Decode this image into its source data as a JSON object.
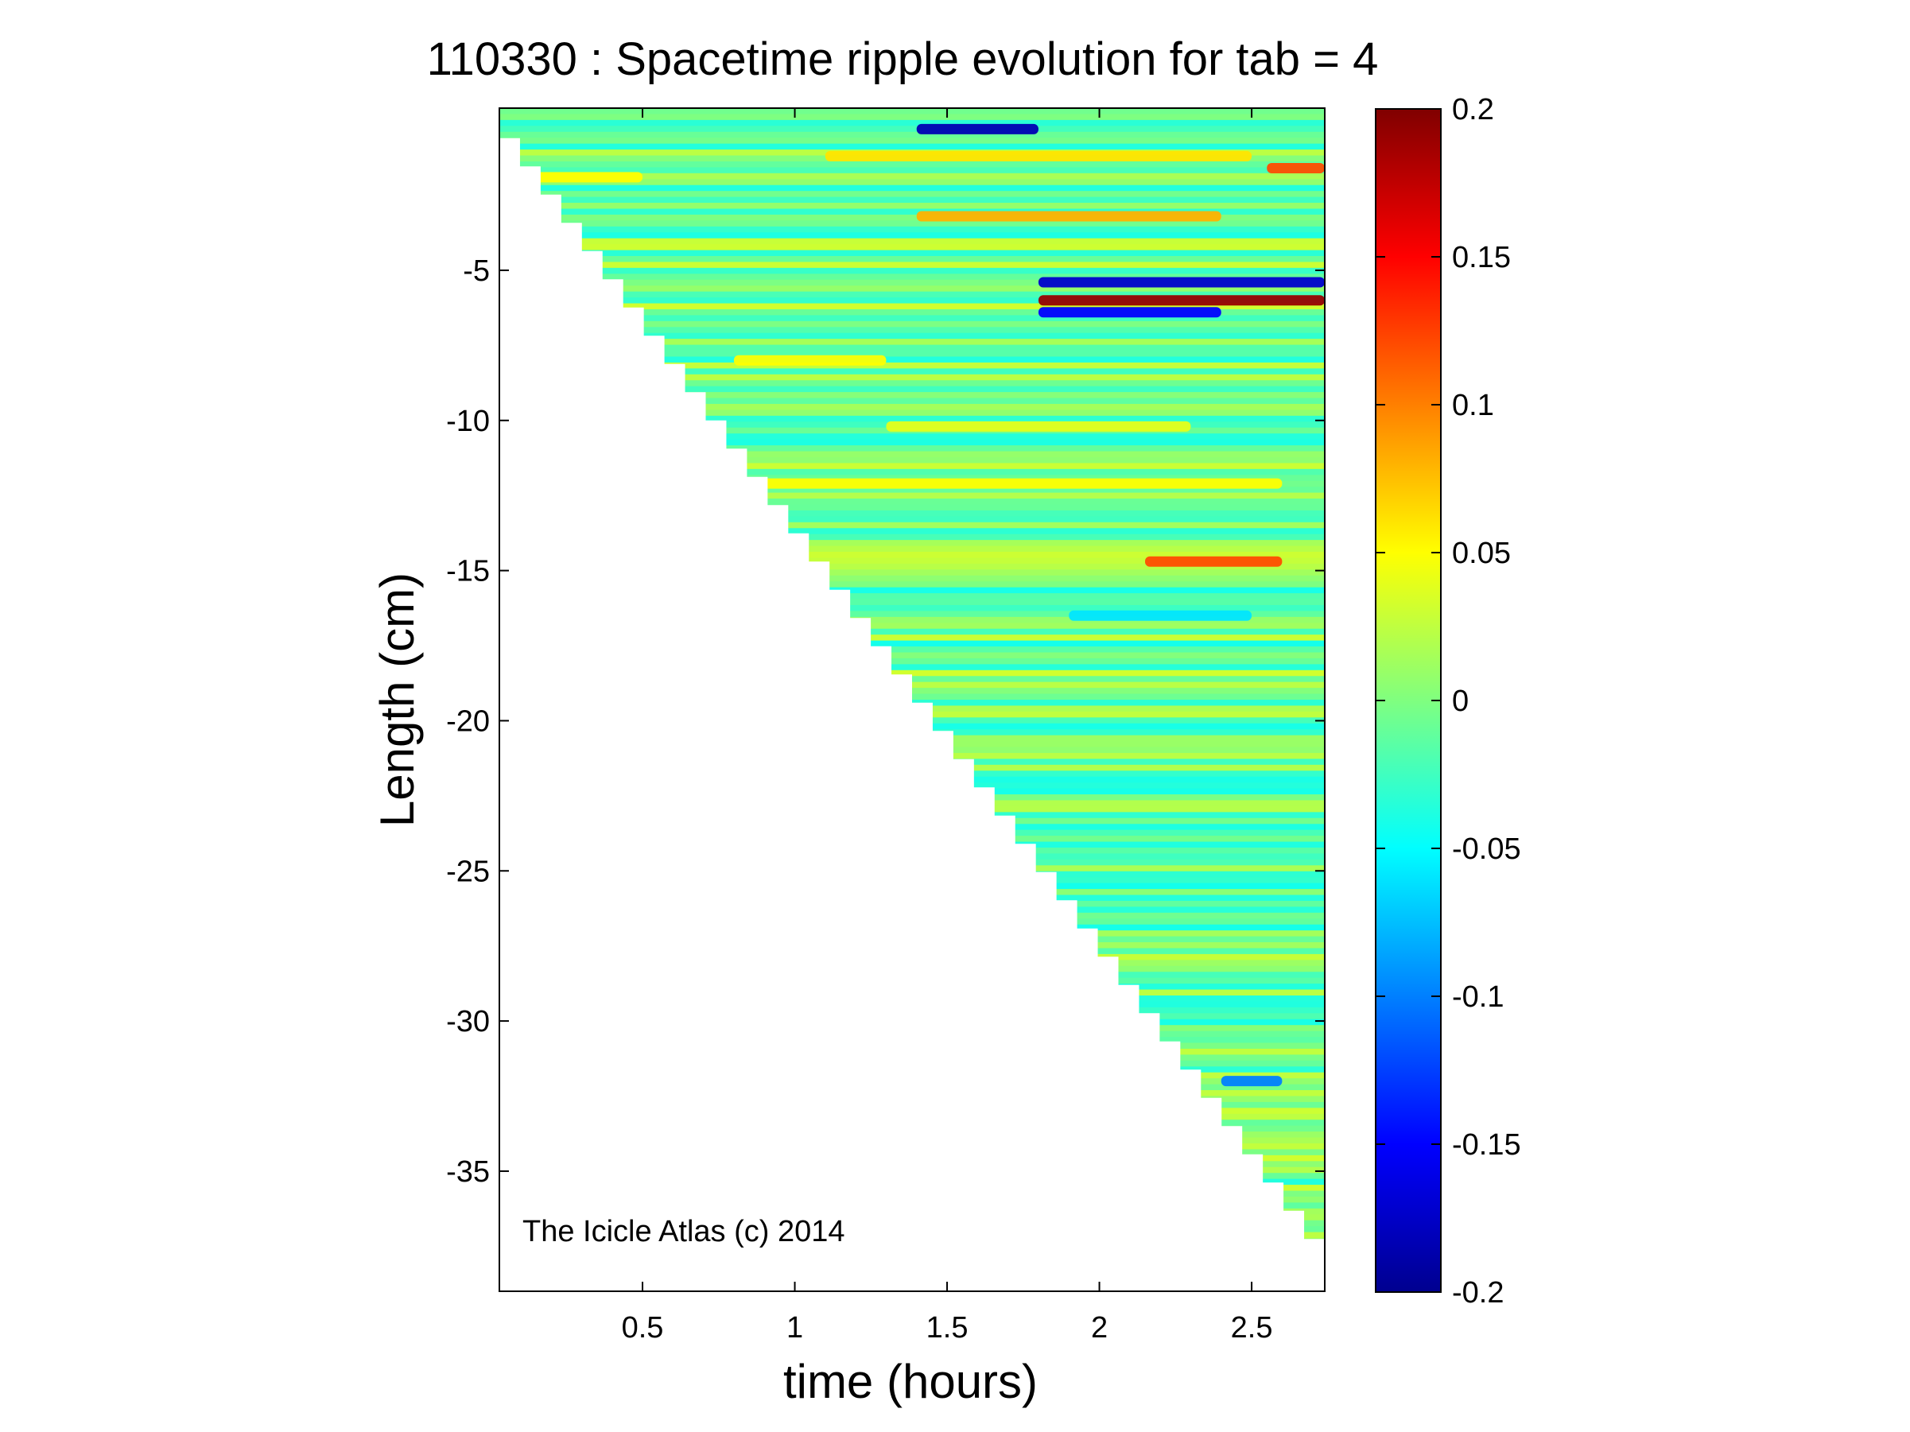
{
  "chart_data": {
    "type": "heatmap",
    "title": "110330 : Spacetime ripple evolution for tab = 4",
    "xlabel": "time (hours)",
    "ylabel": "Length (cm)",
    "xlim": [
      0.03,
      2.74
    ],
    "ylim": [
      -39,
      0.4
    ],
    "xticks": [
      0.5,
      1,
      1.5,
      2,
      2.5
    ],
    "xtick_labels": [
      "0.5",
      "1",
      "1.5",
      "2",
      "2.5"
    ],
    "yticks": [
      -5,
      -10,
      -15,
      -20,
      -25,
      -30,
      -35
    ],
    "ytick_labels": [
      "-5",
      "-10",
      "-15",
      "-20",
      "-25",
      "-30",
      "-35"
    ],
    "colorbar": {
      "colormap": "jet",
      "range": [
        -0.2,
        0.2
      ],
      "ticks": [
        0.2,
        0.15,
        0.1,
        0.05,
        0,
        -0.05,
        -0.1,
        -0.15,
        -0.2
      ],
      "tick_labels": [
        "0.2",
        "0.15",
        "0.1",
        "0.05",
        "0",
        "-0.05",
        "-0.1",
        "-0.15",
        "-0.2"
      ]
    },
    "annotation": "The Icicle Atlas (c) 2014",
    "grid": false,
    "legend": "none",
    "region_boundary": {
      "description": "Data exists only where the icicle has grown: the tip length versus time",
      "tip": [
        [
          0.03,
          -0.6
        ],
        [
          2.74,
          -38.2
        ]
      ]
    },
    "background_value": -0.005,
    "features": [
      {
        "y": -0.3,
        "t_start": 1.4,
        "t_end": 1.8,
        "value": -0.18
      },
      {
        "y": -1.2,
        "t_start": 1.1,
        "t_end": 2.5,
        "value": 0.06
      },
      {
        "y": -1.6,
        "t_start": 2.55,
        "t_end": 2.74,
        "value": 0.12
      },
      {
        "y": -1.9,
        "t_start": 0.15,
        "t_end": 0.5,
        "value": 0.05
      },
      {
        "y": -3.2,
        "t_start": 1.4,
        "t_end": 2.4,
        "value": 0.08
      },
      {
        "y": -5.4,
        "t_start": 1.8,
        "t_end": 2.74,
        "value": -0.17
      },
      {
        "y": -6.0,
        "t_start": 1.8,
        "t_end": 2.74,
        "value": 0.19
      },
      {
        "y": -6.4,
        "t_start": 1.8,
        "t_end": 2.4,
        "value": -0.15
      },
      {
        "y": -8.0,
        "t_start": 0.8,
        "t_end": 1.3,
        "value": 0.05
      },
      {
        "y": -10.2,
        "t_start": 1.3,
        "t_end": 2.3,
        "value": 0.04
      },
      {
        "y": -12.1,
        "t_start": 0.8,
        "t_end": 2.6,
        "value": 0.05
      },
      {
        "y": -14.7,
        "t_start": 2.15,
        "t_end": 2.6,
        "value": 0.12
      },
      {
        "y": -16.5,
        "t_start": 1.9,
        "t_end": 2.5,
        "value": -0.06
      },
      {
        "y": -32.0,
        "t_start": 2.4,
        "t_end": 2.6,
        "value": -0.1
      }
    ]
  }
}
